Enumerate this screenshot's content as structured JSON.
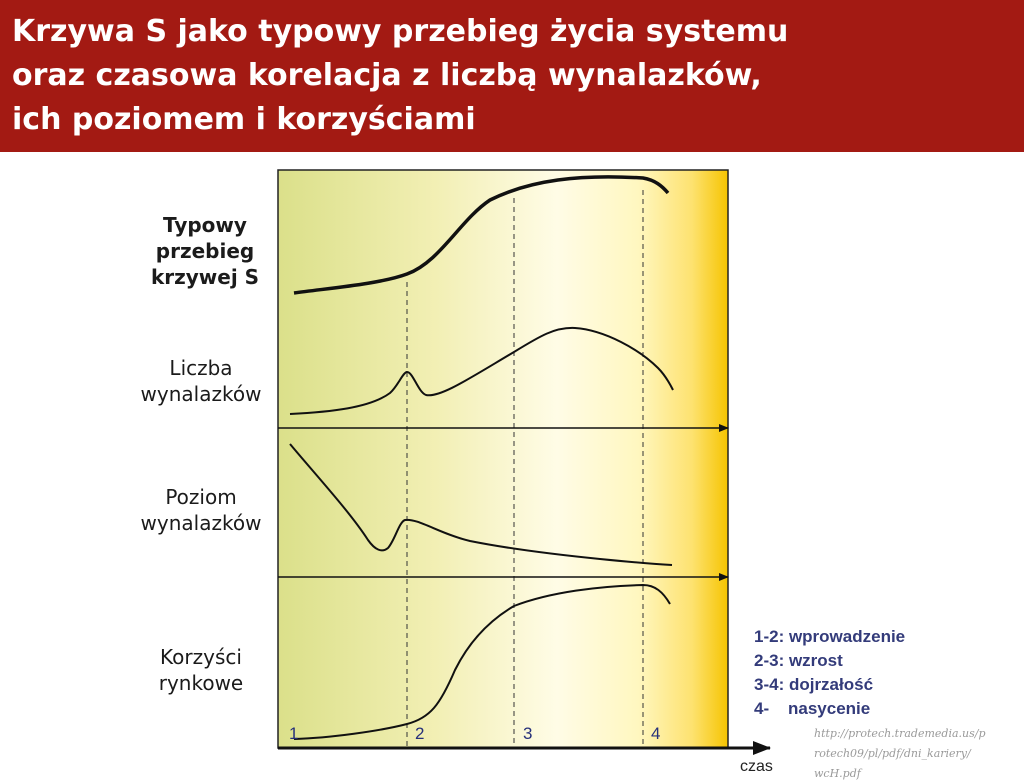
{
  "header": {
    "title_lines": [
      "Krzywa S jako typowy przebieg życia systemu",
      "oraz czasowa korelacja z liczbą wynalazków,",
      "ich poziomem i korzyściami"
    ]
  },
  "colors": {
    "header_bg": "#a31a13",
    "title_text": "#ffffff",
    "legend_text": "#333b7a",
    "gradient_start": "#dbe08a",
    "gradient_mid": "#fffbe0",
    "gradient_end": "#f7c300"
  },
  "rows": [
    {
      "lines": [
        "Typowy",
        "przebieg",
        "krzywej S"
      ],
      "bold": true
    },
    {
      "lines": [
        "Liczba",
        "wynalazków"
      ],
      "bold": false
    },
    {
      "lines": [
        "Poziom",
        "wynalazków"
      ],
      "bold": false
    },
    {
      "lines": [
        "Korzyści",
        "rynkowe"
      ],
      "bold": false
    }
  ],
  "stage_markers": [
    "1",
    "2",
    "3",
    "4"
  ],
  "axis": {
    "label": "czas"
  },
  "legend": [
    "1-2: wprowadzenie",
    "2-3: wzrost",
    "3-4: dojrzałość",
    "4-    nasycenie"
  ],
  "source_lines": [
    "http://protech.trademedia.us/p",
    "rotech09/pl/pdf/dni_kariery/",
    "wcH.pdf"
  ]
}
